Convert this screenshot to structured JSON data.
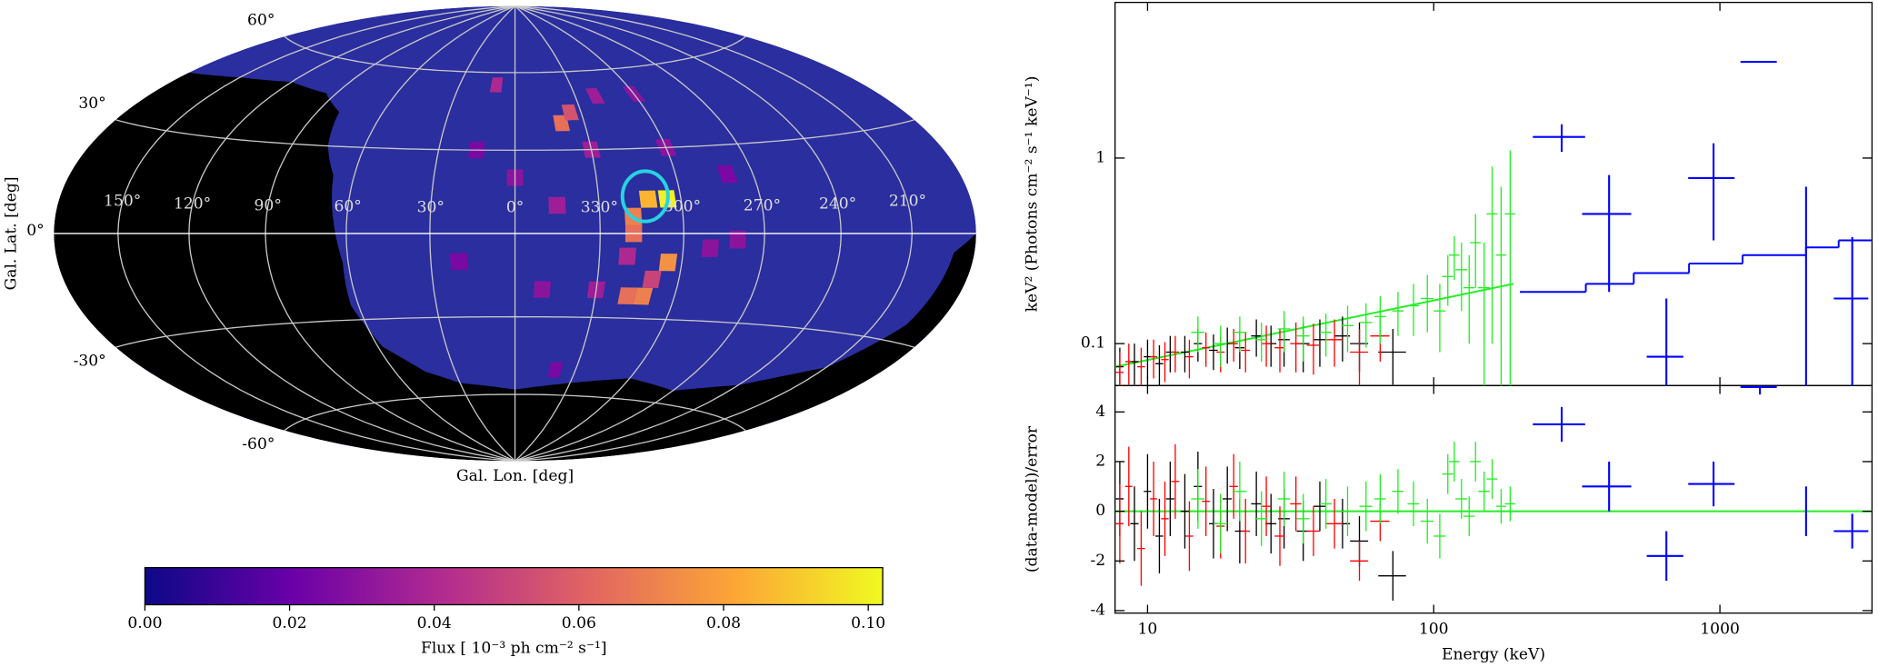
{
  "chart_data": [
    {
      "type": "skymap",
      "xlabel": "Gal. Lon. [deg]",
      "ylabel": "Gal. Lat. [deg]",
      "lonticks": [
        {
          "value": 150,
          "label": "150°"
        },
        {
          "value": 120,
          "label": "120°"
        },
        {
          "value": 90,
          "label": "90°"
        },
        {
          "value": 60,
          "label": "60°"
        },
        {
          "value": 30,
          "label": "30°"
        },
        {
          "value": 0,
          "label": "0°"
        },
        {
          "value": 330,
          "label": "330°"
        },
        {
          "value": 300,
          "label": "300°"
        },
        {
          "value": 270,
          "label": "270°"
        },
        {
          "value": 240,
          "label": "240°"
        },
        {
          "value": 210,
          "label": "210°"
        }
      ],
      "latticks": [
        {
          "value": 60,
          "label": "60°"
        },
        {
          "value": 30,
          "label": "30°"
        },
        {
          "value": 0,
          "label": "0°"
        },
        {
          "value": -30,
          "label": "-30°"
        },
        {
          "value": -60,
          "label": "-60°"
        }
      ],
      "grid": true,
      "cells": [
        {
          "lon": 305,
          "lat": 12,
          "flux": 0.1
        },
        {
          "lon": 312,
          "lat": 12,
          "flux": 0.085
        },
        {
          "lon": 318,
          "lat": 6,
          "flux": 0.07
        },
        {
          "lon": 318,
          "lat": 0,
          "flux": 0.065
        },
        {
          "lon": 320,
          "lat": -8,
          "flux": 0.04
        },
        {
          "lon": 305,
          "lat": -10,
          "flux": 0.075
        },
        {
          "lon": 312,
          "lat": -22,
          "flux": 0.07
        },
        {
          "lon": 318,
          "lat": -22,
          "flux": 0.065
        },
        {
          "lon": 310,
          "lat": -16,
          "flux": 0.05
        },
        {
          "lon": 340,
          "lat": 40,
          "flux": 0.065
        },
        {
          "lon": 335,
          "lat": 44,
          "flux": 0.055
        },
        {
          "lon": 10,
          "lat": 55,
          "flux": 0.04
        },
        {
          "lon": 330,
          "lat": 30,
          "flux": 0.035
        },
        {
          "lon": 300,
          "lat": 30,
          "flux": 0.03
        },
        {
          "lon": 320,
          "lat": 50,
          "flux": 0.035
        },
        {
          "lon": 0,
          "lat": 20,
          "flux": 0.03
        },
        {
          "lon": 345,
          "lat": 10,
          "flux": 0.035
        },
        {
          "lon": 290,
          "lat": -5,
          "flux": 0.03
        },
        {
          "lon": 280,
          "lat": -2,
          "flux": 0.03
        },
        {
          "lon": 20,
          "lat": -10,
          "flux": 0.025
        },
        {
          "lon": 350,
          "lat": -20,
          "flux": 0.03
        },
        {
          "lon": 330,
          "lat": -20,
          "flux": 0.035
        },
        {
          "lon": 340,
          "lat": -50,
          "flux": 0.025
        },
        {
          "lon": 15,
          "lat": 30,
          "flux": 0.025
        },
        {
          "lon": 300,
          "lat": 50,
          "flux": 0.03
        },
        {
          "lon": 280,
          "lat": 20,
          "flux": 0.025
        }
      ],
      "source": {
        "lon": 313,
        "lat": 13,
        "color": "#27d3e0"
      },
      "colorbar": {
        "label": "Flux [ 10⁻³ ph cm⁻² s⁻¹]",
        "lim": [
          0,
          0.102
        ],
        "ticks": [
          {
            "value": 0,
            "label": "0.00"
          },
          {
            "value": 0.02,
            "label": "0.02"
          },
          {
            "value": 0.04,
            "label": "0.04"
          },
          {
            "value": 0.06,
            "label": "0.06"
          },
          {
            "value": 0.08,
            "label": "0.08"
          },
          {
            "value": 0.1,
            "label": "0.10"
          }
        ],
        "colormap": [
          "#0d0887",
          "#6a00a8",
          "#b12a90",
          "#e16462",
          "#fca636",
          "#f0f921"
        ]
      }
    },
    {
      "type": "errorbar",
      "xlabel": "Energy (keV)",
      "ylabel": "keV² (Photons cm⁻² s⁻¹ keV⁻¹)",
      "xscale": "log",
      "yscale": "log",
      "xlim": [
        7.7,
        3400
      ],
      "ylim": [
        0.0594,
        6.9
      ],
      "xticks": [
        10,
        100,
        1000
      ],
      "yticks": [
        0.1,
        1
      ],
      "series": [
        {
          "color": "#000000",
          "x": [
            8,
            9,
            10,
            11,
            12,
            13.5,
            15,
            17,
            19,
            21,
            24,
            27,
            30,
            35,
            40,
            48,
            55,
            72
          ],
          "xerr": [
            0.25,
            0.3,
            0.3,
            0.35,
            0.4,
            0.45,
            0.5,
            0.6,
            0.7,
            0.8,
            1,
            1.2,
            1.4,
            1.8,
            2,
            3,
            4,
            8
          ],
          "values": [
            0.075,
            0.08,
            0.085,
            0.078,
            0.09,
            0.09,
            0.1,
            0.092,
            0.1,
            0.095,
            0.11,
            0.1,
            0.105,
            0.1,
            0.105,
            0.11,
            0.1,
            0.09
          ],
          "yerr": [
            0.02,
            0.02,
            0.02,
            0.02,
            0.02,
            0.02,
            0.02,
            0.02,
            0.022,
            0.022,
            0.025,
            0.025,
            0.03,
            0.03,
            0.03,
            0.03,
            0.03,
            0.03
          ],
          "residuals": [
            0.5,
            -0.5,
            0.8,
            -1,
            0.5,
            0,
            1,
            -0.5,
            0.5,
            -0.8,
            0.3,
            -0.5,
            -0.3,
            -0.8,
            0.2,
            -0.5,
            -1.2,
            -2.6
          ],
          "residual_errors": [
            1.5,
            1.5,
            1.5,
            1.5,
            1.5,
            1.5,
            1.4,
            1.4,
            1.3,
            1.3,
            1.3,
            1.2,
            1.2,
            1.2,
            1,
            1,
            1,
            1
          ]
        },
        {
          "color": "#ff0000",
          "x": [
            8,
            8.6,
            9.5,
            10.5,
            11.5,
            12.5,
            14,
            16,
            18,
            20,
            22,
            26,
            29,
            33,
            38,
            45,
            55,
            65
          ],
          "xerr": [
            0.25,
            0.25,
            0.3,
            0.3,
            0.35,
            0.4,
            0.45,
            0.5,
            0.6,
            0.7,
            0.8,
            1,
            1.2,
            1.5,
            2,
            3,
            4,
            5
          ],
          "values": [
            0.07,
            0.08,
            0.075,
            0.085,
            0.082,
            0.09,
            0.085,
            0.095,
            0.09,
            0.1,
            0.092,
            0.1,
            0.095,
            0.1,
            0.098,
            0.105,
            0.09,
            0.11
          ],
          "yerr": [
            0.02,
            0.02,
            0.02,
            0.02,
            0.02,
            0.02,
            0.02,
            0.02,
            0.02,
            0.02,
            0.022,
            0.025,
            0.025,
            0.03,
            0.03,
            0.03,
            0.03,
            0.03
          ],
          "residuals": [
            -0.5,
            1,
            -1.5,
            0.5,
            -0.3,
            1.2,
            -1,
            0.4,
            -0.6,
            1,
            -0.8,
            0.2,
            -1,
            0.3,
            -0.8,
            -0.5,
            -2,
            -0.4
          ],
          "residual_errors": [
            1.6,
            1.6,
            1.5,
            1.5,
            1.5,
            1.5,
            1.4,
            1.4,
            1.3,
            1.3,
            1.3,
            1.2,
            1.2,
            1.1,
            1,
            1,
            0.8,
            0.8
          ]
        },
        {
          "color": "#22ee22",
          "x": [
            15,
            18,
            21,
            25,
            30,
            35,
            42,
            50,
            58,
            65,
            75,
            85,
            95,
            105,
            112,
            118,
            125,
            133,
            140,
            150,
            160,
            172,
            185
          ],
          "xerr": [
            0.8,
            1,
            1.2,
            1.3,
            1.5,
            1.8,
            2,
            2.5,
            3,
            3,
            3.5,
            4,
            5,
            5,
            5,
            5,
            6,
            6,
            6,
            7,
            7,
            7,
            8
          ],
          "values": [
            0.115,
            0.1,
            0.115,
            0.105,
            0.12,
            0.11,
            0.115,
            0.125,
            0.13,
            0.14,
            0.15,
            0.16,
            0.175,
            0.15,
            0.23,
            0.3,
            0.25,
            0.2,
            0.35,
            0.2,
            0.5,
            0.3,
            0.5
          ],
          "yerr": [
            0.025,
            0.025,
            0.025,
            0.025,
            0.03,
            0.03,
            0.03,
            0.035,
            0.035,
            0.04,
            0.04,
            0.05,
            0.06,
            0.06,
            0.07,
            0.08,
            0.1,
            0.1,
            0.15,
            0.15,
            0.4,
            0.4,
            0.6
          ],
          "residuals": [
            0.5,
            -0.5,
            0.8,
            -0.3,
            0.5,
            -0.3,
            0.3,
            0,
            0.2,
            0.5,
            0.8,
            0.3,
            -0.4,
            -1,
            1.5,
            2,
            0.5,
            -0.2,
            2,
            0.8,
            1.3,
            0.2,
            0.3
          ],
          "residual_errors": [
            1.2,
            1.2,
            1.2,
            1.1,
            1.1,
            1,
            1,
            1,
            1,
            1,
            0.9,
            0.9,
            0.9,
            0.9,
            0.8,
            0.8,
            0.8,
            0.8,
            0.8,
            0.8,
            0.8,
            0.7,
            0.7
          ]
        },
        {
          "color": "#0000ff",
          "x": [
            280,
            410,
            650,
            950,
            1380,
            2000,
            2900
          ],
          "xerr": [
            58,
            80,
            95,
            175,
            200,
            0,
            400
          ],
          "values": [
            1.3,
            0.5,
            0.085,
            0.78,
            3.3,
            0.1,
            0.175
          ],
          "yerr": [
            0.22,
            0.31,
            0.09,
            0.42,
            0,
            0.6,
            0.2
          ],
          "residuals": [
            3.5,
            1,
            -1.8,
            1.1,
            5,
            0,
            -0.8
          ],
          "residual_errors": [
            0.7,
            1,
            1,
            0.9,
            0.3,
            1,
            0.7
          ]
        }
      ],
      "models": [
        {
          "color": "#22ee22",
          "x": [
            7.7,
            190
          ],
          "values": [
            0.075,
            0.21
          ]
        },
        {
          "color": "#0000ff",
          "bins": [
            200,
            340,
            500,
            780,
            1200,
            2000,
            2600,
            3400
          ],
          "values": [
            0.19,
            0.21,
            0.24,
            0.27,
            0.3,
            0.33,
            0.36
          ]
        }
      ],
      "residual_panel": {
        "ylabel": "(data-model)/error",
        "ylim": [
          -4.1,
          5.06
        ],
        "yticks": [
          -4,
          -2,
          0,
          2,
          4
        ],
        "zero_line_color": "#22ee22"
      }
    }
  ]
}
